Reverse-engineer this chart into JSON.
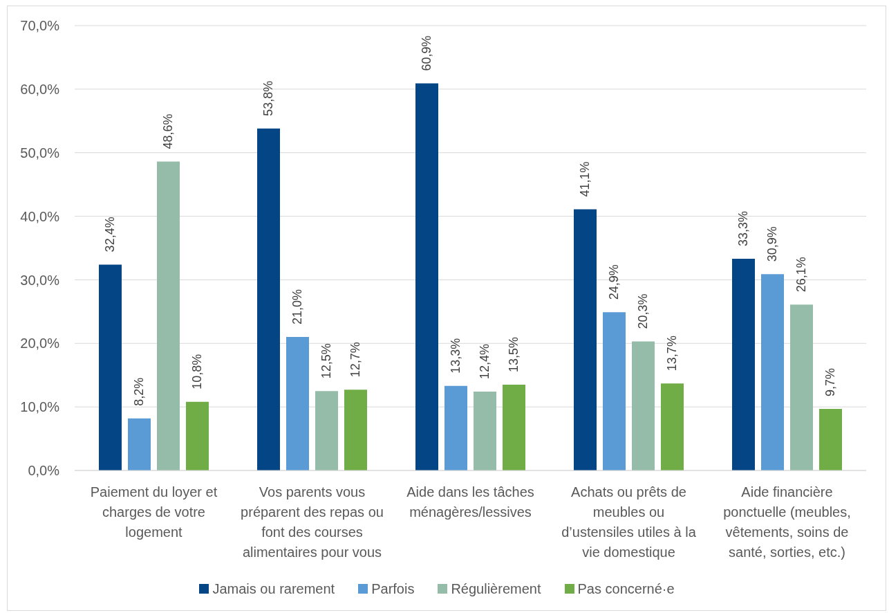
{
  "chart_data": {
    "type": "bar",
    "categories": [
      "Paiement du loyer et charges de votre logement",
      "Vos parents vous préparent des repas ou font des courses alimentaires pour vous",
      "Aide dans les tâches ménagères/lessives",
      "Achats ou prêts de meubles ou d’ustensiles utiles à la vie domestique",
      "Aide financière ponctuelle (meubles, vêtements, soins de santé, sorties, etc.)"
    ],
    "series": [
      {
        "name": "Jamais ou rarement",
        "color": "#034585",
        "values": [
          32.4,
          53.8,
          60.9,
          41.1,
          33.3
        ],
        "value_labels": [
          "32,4%",
          "53,8%",
          "60,9%",
          "41,1%",
          "33,3%"
        ]
      },
      {
        "name": "Parfois",
        "color": "#5b9bd5",
        "values": [
          8.2,
          21.0,
          13.3,
          24.9,
          30.9
        ],
        "value_labels": [
          "8,2%",
          "21,0%",
          "13,3%",
          "24,9%",
          "30,9%"
        ]
      },
      {
        "name": "Régulièrement",
        "color": "#95bca8",
        "values": [
          48.6,
          12.5,
          12.4,
          20.3,
          26.1
        ],
        "value_labels": [
          "48,6%",
          "12,5%",
          "12,4%",
          "20,3%",
          "26,1%"
        ]
      },
      {
        "name": "Pas concerné·e",
        "color": "#70ad47",
        "values": [
          10.8,
          12.7,
          13.5,
          13.7,
          9.7
        ],
        "value_labels": [
          "10,8%",
          "12,7%",
          "13,5%",
          "13,7%",
          "9,7%"
        ]
      }
    ],
    "ylim": [
      0,
      70
    ],
    "yticks": [
      {
        "value": 0,
        "label": "0,0%"
      },
      {
        "value": 10,
        "label": "10,0%"
      },
      {
        "value": 20,
        "label": "20,0%"
      },
      {
        "value": 30,
        "label": "30,0%"
      },
      {
        "value": 40,
        "label": "40,0%"
      },
      {
        "value": 50,
        "label": "50,0%"
      },
      {
        "value": 60,
        "label": "60,0%"
      },
      {
        "value": 70,
        "label": "70,0%"
      }
    ],
    "grid": "y",
    "legend": "bottom"
  }
}
